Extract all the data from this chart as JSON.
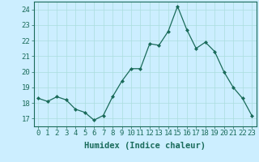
{
  "x": [
    0,
    1,
    2,
    3,
    4,
    5,
    6,
    7,
    8,
    9,
    10,
    11,
    12,
    13,
    14,
    15,
    16,
    17,
    18,
    19,
    20,
    21,
    22,
    23
  ],
  "y": [
    18.3,
    18.1,
    18.4,
    18.2,
    17.6,
    17.4,
    16.9,
    17.2,
    18.4,
    19.4,
    20.2,
    20.2,
    21.8,
    21.7,
    22.6,
    24.2,
    22.7,
    21.5,
    21.9,
    21.3,
    20.0,
    19.0,
    18.3,
    17.2
  ],
  "xlabel": "Humidex (Indice chaleur)",
  "ylim": [
    16.5,
    24.5
  ],
  "yticks": [
    17,
    18,
    19,
    20,
    21,
    22,
    23,
    24
  ],
  "xticks": [
    0,
    1,
    2,
    3,
    4,
    5,
    6,
    7,
    8,
    9,
    10,
    11,
    12,
    13,
    14,
    15,
    16,
    17,
    18,
    19,
    20,
    21,
    22,
    23
  ],
  "line_color": "#1a6b5a",
  "marker": "D",
  "marker_size": 2.0,
  "bg_color": "#cceeff",
  "grid_color": "#aadddd",
  "axis_color": "#1a6b5a",
  "font_color": "#1a6b5a",
  "xlabel_fontsize": 7.5,
  "tick_fontsize": 6.5
}
